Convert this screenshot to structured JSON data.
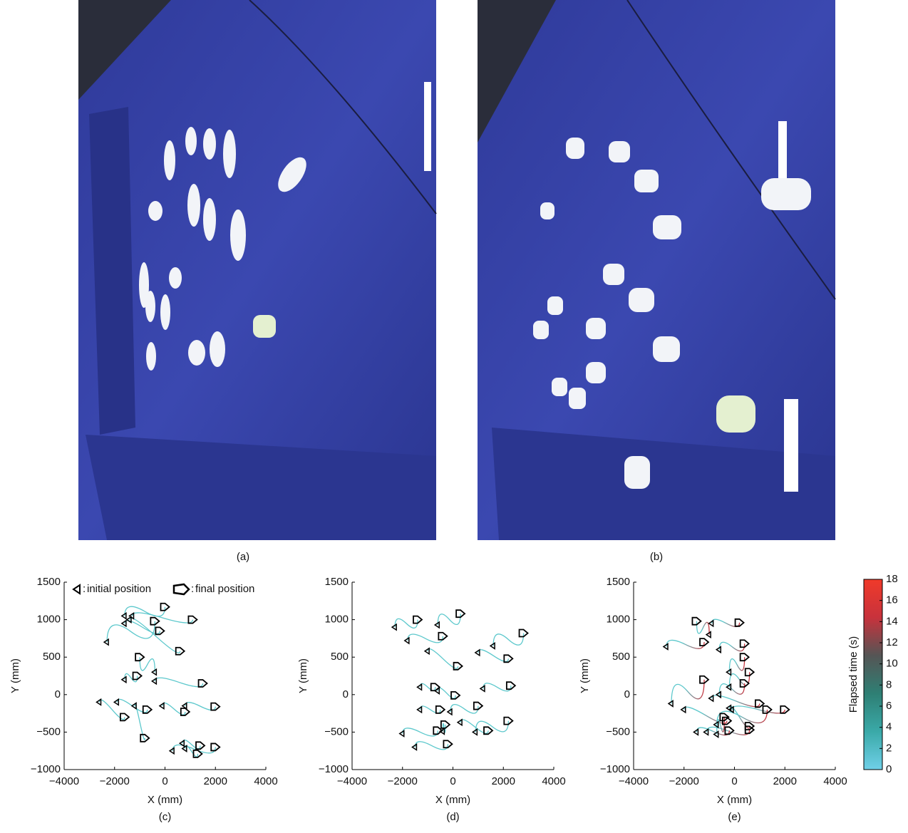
{
  "panels": [
    {
      "label": "(a)"
    },
    {
      "label": "(b)"
    }
  ],
  "chart_data": [
    {
      "type": "scatter",
      "label": "(c)",
      "x_label": "X (mm)",
      "y_label": "Y (mm)",
      "xlim": [
        -4000,
        4000
      ],
      "ylim": [
        -1000,
        1500
      ],
      "xticks": [
        {
          "value": -4000,
          "label": "−4000"
        },
        {
          "value": -2000,
          "label": "−2000"
        },
        0,
        2000,
        4000
      ],
      "yticks": [
        {
          "value": -1000,
          "label": "−1000"
        },
        {
          "value": -500,
          "label": "−500"
        },
        0,
        500,
        1000,
        1500
      ],
      "trajectory_colors": [
        "#5cc8cc",
        "#5cc8cc"
      ],
      "series": [
        {
          "name": "initial position",
          "color": "#000000",
          "x": [
            -1600,
            -1300,
            -2300,
            -1600,
            -1400,
            -400,
            -1600,
            -400,
            -1900,
            800,
            -100,
            -2600,
            -1200,
            700,
            300,
            800
          ],
          "y": [
            1050,
            1050,
            700,
            950,
            1000,
            300,
            200,
            180,
            -100,
            -150,
            -150,
            -100,
            -150,
            -650,
            -750,
            -720
          ]
        },
        {
          "name": "final position",
          "color": "#000000",
          "x": [
            0,
            1100,
            -400,
            -200,
            600,
            -1000,
            -1100,
            1500,
            -700,
            2000,
            800,
            -1600,
            -800,
            1400,
            2000,
            1300
          ],
          "y": [
            1170,
            1000,
            980,
            850,
            580,
            500,
            250,
            150,
            -200,
            -160,
            -230,
            -300,
            -580,
            -680,
            -700,
            -790
          ]
        }
      ]
    },
    {
      "type": "scatter",
      "label": "(d)",
      "x_label": "X (mm)",
      "y_label": "Y (mm)",
      "xlim": [
        -4000,
        4000
      ],
      "ylim": [
        -1000,
        1500
      ],
      "xticks": [
        {
          "value": -4000,
          "label": "−4000"
        },
        {
          "value": -2000,
          "label": "−2000"
        },
        0,
        2000,
        4000
      ],
      "yticks": [
        {
          "value": -1000,
          "label": "−1000"
        },
        {
          "value": -500,
          "label": "−500"
        },
        0,
        500,
        1000,
        1500
      ],
      "trajectory_colors": [
        "#5cc8cc",
        "#5cc8cc"
      ],
      "series": [
        {
          "name": "initial position",
          "color": "#000000",
          "x": [
            -2300,
            -600,
            -1800,
            1600,
            1000,
            -1000,
            1200,
            -1300,
            -600,
            -100,
            -1300,
            -2000,
            -400,
            300,
            900,
            -1500
          ],
          "y": [
            900,
            930,
            720,
            650,
            560,
            580,
            80,
            100,
            50,
            -230,
            -200,
            -520,
            -490,
            -370,
            -500,
            -700
          ]
        },
        {
          "name": "final position",
          "color": "#000000",
          "x": [
            -1400,
            300,
            -400,
            2800,
            2200,
            200,
            2300,
            -700,
            100,
            1000,
            -500,
            -600,
            -300,
            1400,
            2200,
            -200
          ],
          "y": [
            1000,
            1080,
            780,
            820,
            480,
            380,
            120,
            100,
            -10,
            -150,
            -200,
            -480,
            -400,
            -480,
            -350,
            -660
          ]
        }
      ]
    },
    {
      "type": "scatter",
      "label": "(e)",
      "x_label": "X (mm)",
      "y_label": "Y (mm)",
      "xlim": [
        -4000,
        4000
      ],
      "ylim": [
        -1000,
        1500
      ],
      "xticks": [
        {
          "value": -4000,
          "label": "−4000"
        },
        {
          "value": -2000,
          "label": "−2000"
        },
        0,
        2000,
        4000
      ],
      "yticks": [
        {
          "value": -1000,
          "label": "−1000"
        },
        {
          "value": -500,
          "label": "−500"
        },
        0,
        500,
        1000,
        1500
      ],
      "trajectory_colors": [
        "#5cc8cc",
        "#c8323c"
      ],
      "series": [
        {
          "name": "initial position",
          "color": "#000000",
          "x": [
            -900,
            -1000,
            -2700,
            -600,
            -200,
            -200,
            -2500,
            -600,
            -900,
            -100,
            -200,
            -1100,
            -2000,
            -700,
            -700,
            -1500
          ],
          "y": [
            950,
            800,
            640,
            600,
            300,
            100,
            -120,
            0,
            -50,
            -200,
            -180,
            -500,
            -200,
            -400,
            -530,
            -500
          ]
        },
        {
          "name": "final position",
          "color": "#000000",
          "x": [
            200,
            -1500,
            -1200,
            400,
            400,
            600,
            -1200,
            400,
            1000,
            2000,
            600,
            600,
            -300,
            1300,
            -400,
            -200
          ],
          "y": [
            960,
            980,
            700,
            680,
            500,
            300,
            200,
            150,
            -120,
            -200,
            -420,
            -470,
            -350,
            -200,
            -300,
            -480
          ]
        }
      ],
      "colorbar": {
        "label": "Flapsed time (s)",
        "lim": [
          0,
          18
        ],
        "ticks": [
          0,
          2,
          4,
          6,
          8,
          10,
          12,
          14,
          16,
          18
        ],
        "colors": [
          "#6fd0e8",
          "#3aa9a8",
          "#2e7f74",
          "#555555",
          "#c8323c",
          "#f03a2a"
        ]
      }
    }
  ]
}
